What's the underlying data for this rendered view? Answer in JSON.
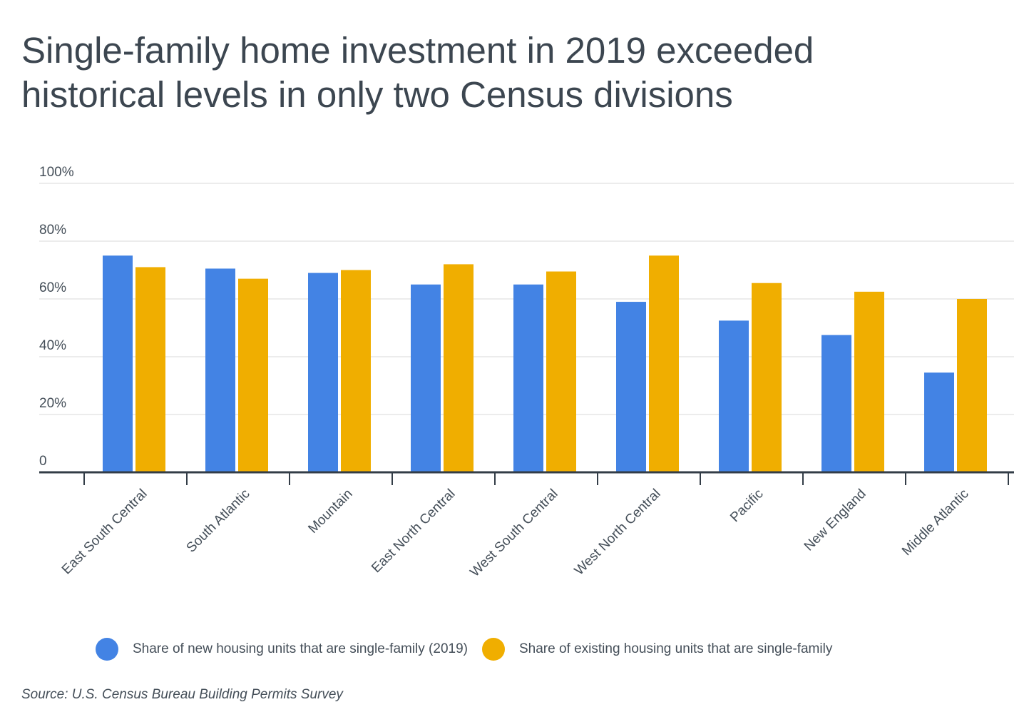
{
  "title_lines": [
    "Single-family home investment in 2019 exceeded",
    "historical levels in only two Census divisions"
  ],
  "source": "Source: U.S. Census Bureau Building Permits Survey",
  "chart_data": {
    "type": "bar",
    "categories": [
      "East South Central",
      "South Atlantic",
      "Mountain",
      "East North Central",
      "West South Central",
      "West North Central",
      "Pacific",
      "New England",
      "Middle Atlantic"
    ],
    "series": [
      {
        "name": "Share of new housing units that are single-family (2019)",
        "color": "#4383e4",
        "values": [
          75,
          70.5,
          69,
          65,
          65,
          59,
          52.5,
          47.5,
          34.5
        ]
      },
      {
        "name": "Share of existing housing units that are single-family",
        "color": "#f0ae00",
        "values": [
          71,
          67,
          70,
          72,
          69.5,
          75,
          65.5,
          62.5,
          60
        ]
      }
    ],
    "yticks": [
      "0",
      "20%",
      "40%",
      "60%",
      "80%",
      "100%"
    ],
    "ylim": [
      0,
      100
    ],
    "grid": true,
    "legend_position": "bottom"
  }
}
